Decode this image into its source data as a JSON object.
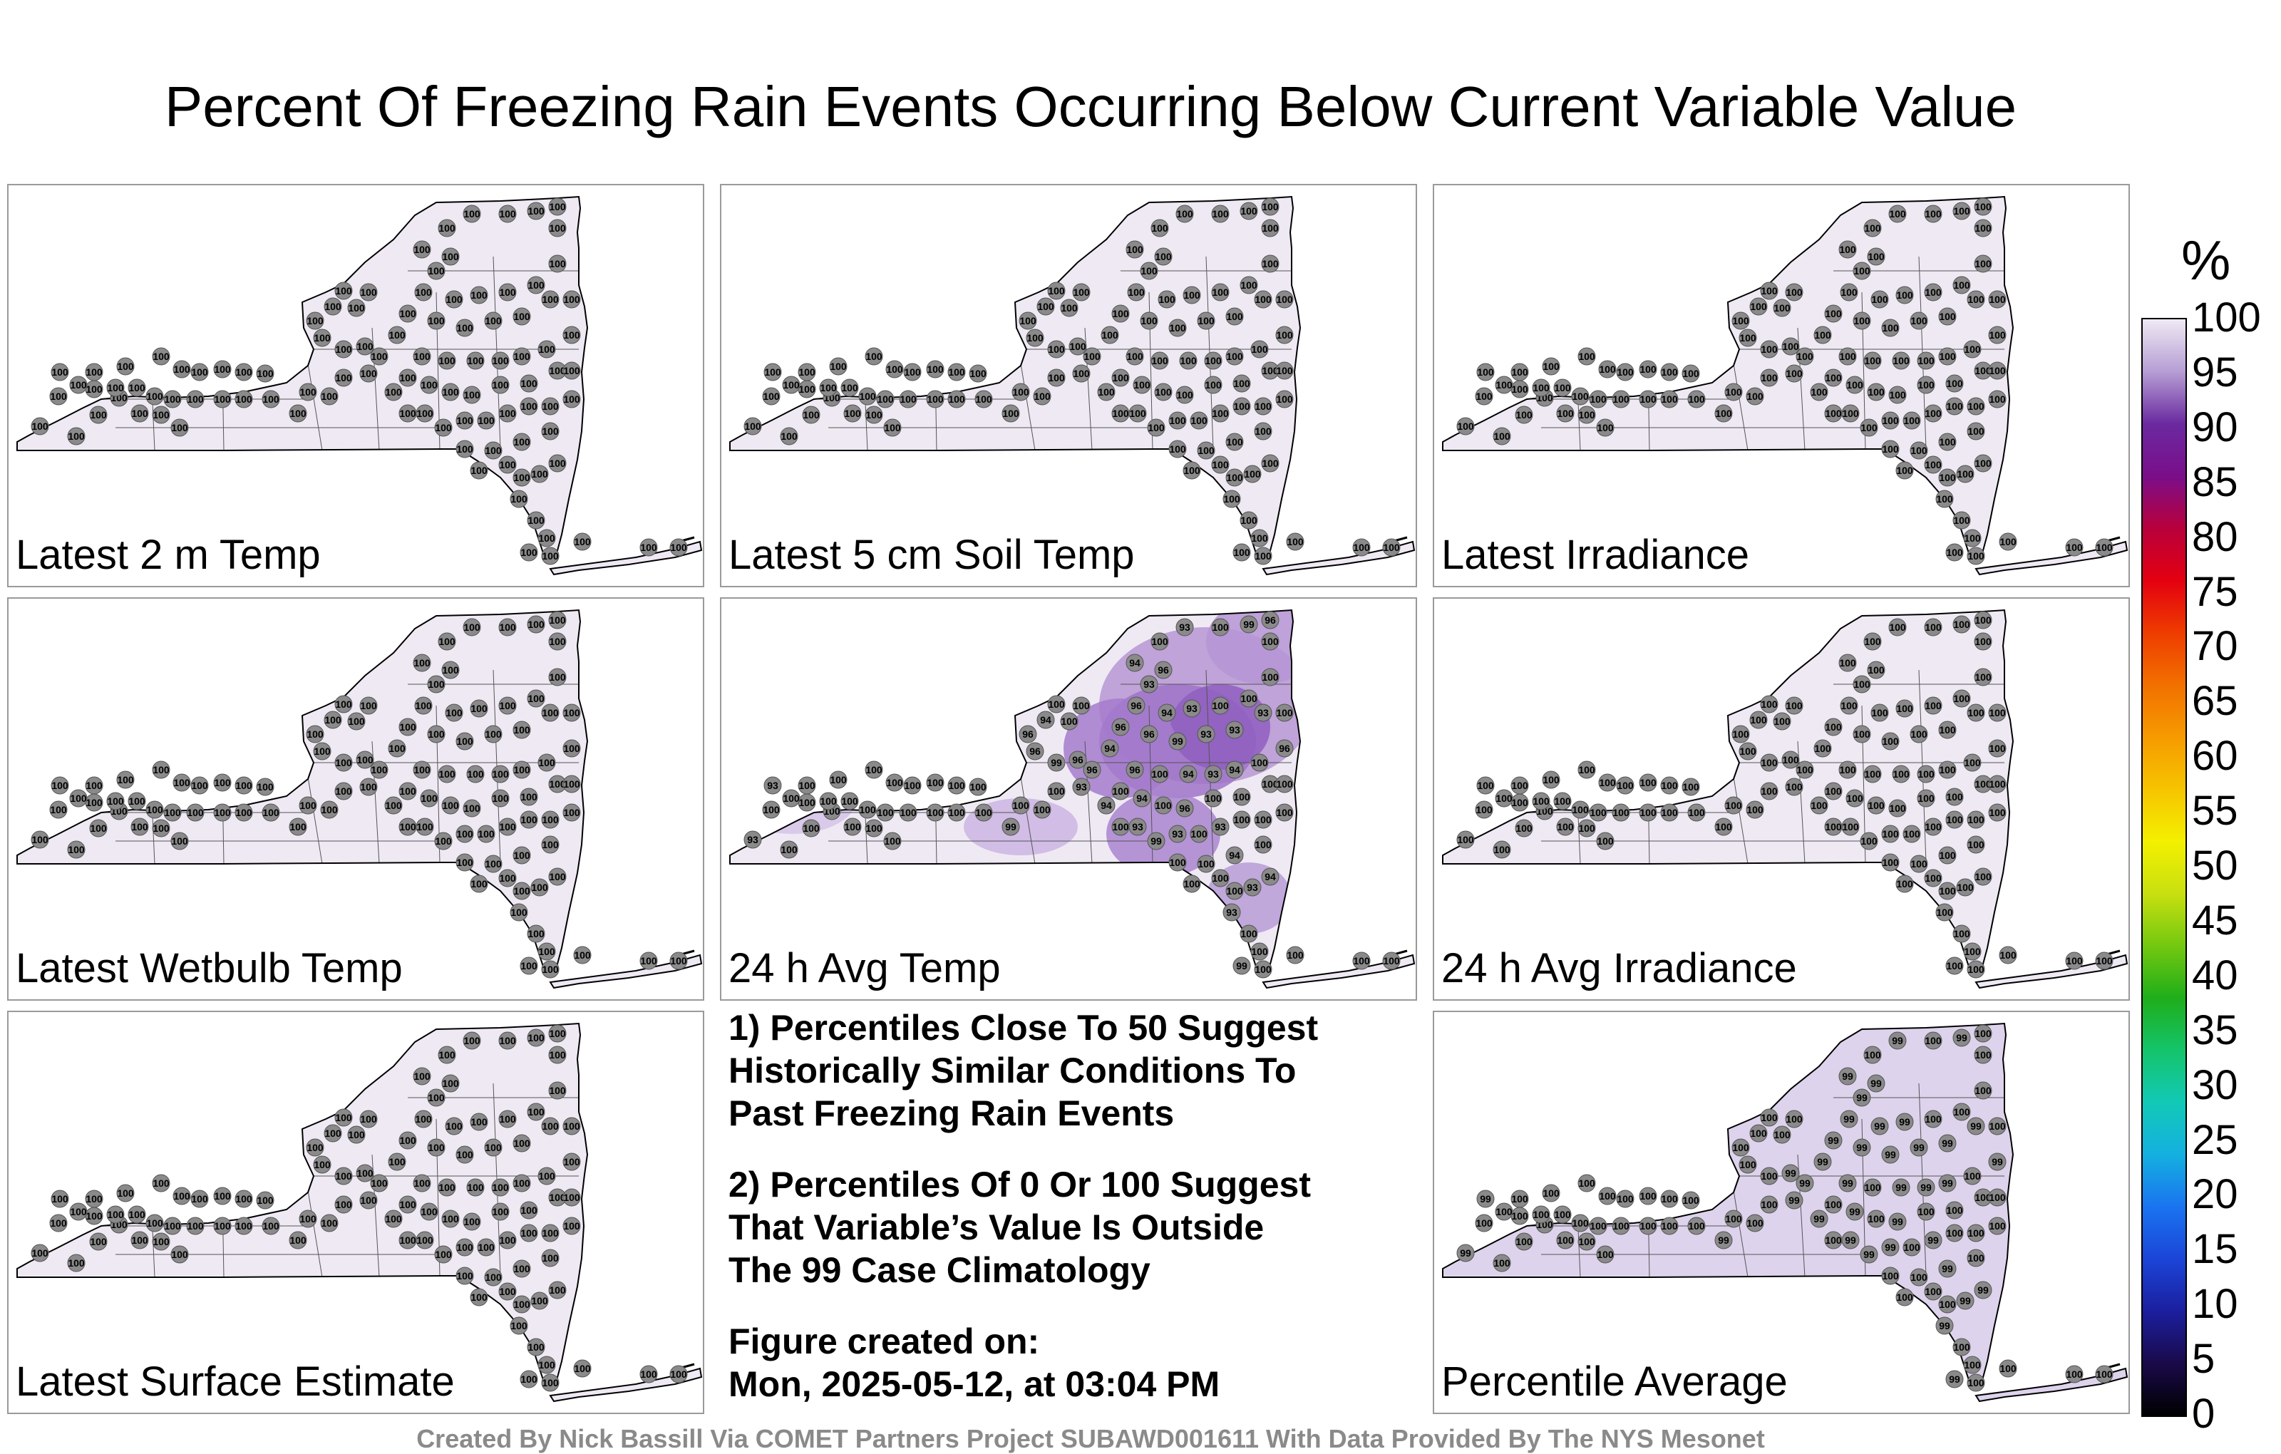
{
  "title": "Percent Of Freezing Rain Events Occurring Below Current Variable Value",
  "panels": [
    {
      "label": "Latest 2 m Temp",
      "mode": "all100"
    },
    {
      "label": "Latest 5 cm Soil Temp",
      "mode": "all100"
    },
    {
      "label": "Latest Irradiance",
      "mode": "all100"
    },
    {
      "label": "Latest Wetbulb Temp",
      "mode": "all100"
    },
    {
      "label": "24 h Avg Temp",
      "mode": "avgtemp"
    },
    {
      "label": "24 h Avg Irradiance",
      "mode": "all100"
    },
    {
      "label": "Latest Surface Estimate",
      "mode": "all100"
    },
    {
      "label": "Percentile Average",
      "mode": "average"
    }
  ],
  "notes": {
    "note1": "1) Percentiles Close To 50 Suggest\nHistorically Similar Conditions To\nPast Freezing Rain Events",
    "note2": "2) Percentiles Of 0 Or 100 Suggest\nThat Variable’s Value Is Outside\nThe 99 Case Climatology",
    "created": "Figure created on:\nMon, 2025-05-12, at 03:04 PM"
  },
  "colorbar": {
    "unit": "%",
    "ticks": [
      "0",
      "5",
      "10",
      "15",
      "20",
      "25",
      "30",
      "35",
      "40",
      "45",
      "50",
      "55",
      "60",
      "65",
      "70",
      "75",
      "80",
      "85",
      "90",
      "95",
      "100"
    ],
    "colors": [
      "#000000",
      "#1a0a4a",
      "#1b1f9e",
      "#1b45d8",
      "#1a74f0",
      "#14b0e0",
      "#12c9b6",
      "#14c46a",
      "#1fae1a",
      "#74c810",
      "#c8e010",
      "#f4f000",
      "#f6c400",
      "#f69a00",
      "#f27000",
      "#ee3c00",
      "#e40010",
      "#b8003c",
      "#7a0e8a",
      "#6a2aa0",
      "#b69ed4",
      "#efe9f4"
    ]
  },
  "credit": "Created By Nick Bassill Via COMET Partners Project SUBAWD001611 With Data Provided By The NYS Mesonet"
}
